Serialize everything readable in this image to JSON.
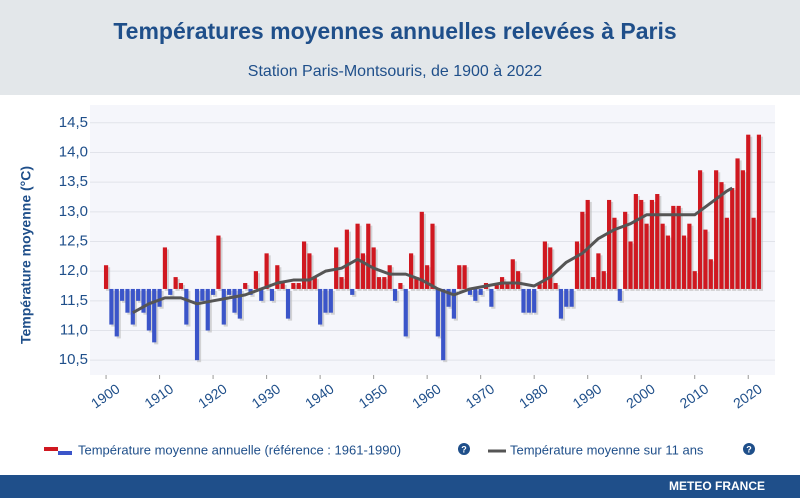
{
  "chart_data": {
    "type": "bar",
    "title": "Températures moyennes annuelles relevées à Paris",
    "subtitle": "Station Paris-Montsouris, de 1900 à 2022",
    "y_label": "Température moyenne (°C)",
    "footer": "METEO FRANCE",
    "baseline": 11.7,
    "up_color": "#d01820",
    "down_color": "#3b55c9",
    "grid": true,
    "xlim": [
      1897,
      2025
    ],
    "xticks": [
      1900,
      1910,
      1920,
      1930,
      1940,
      1950,
      1960,
      1970,
      1980,
      1990,
      2000,
      2010,
      2020
    ],
    "ylim": [
      10.25,
      14.8
    ],
    "yticks": [
      {
        "value": 10.5,
        "label": "10,5"
      },
      {
        "value": 11,
        "label": "11,0"
      },
      {
        "value": 11.5,
        "label": "11,5"
      },
      {
        "value": 12,
        "label": "12,0"
      },
      {
        "value": 12.5,
        "label": "12,5"
      },
      {
        "value": 13,
        "label": "13,0"
      },
      {
        "value": 13.5,
        "label": "13,5"
      },
      {
        "value": 14,
        "label": "14,0"
      },
      {
        "value": 14.5,
        "label": "14,5"
      }
    ],
    "series": [
      {
        "name": "Température moyenne annuelle (référence : 1961-1990)",
        "type": "bar",
        "x": [
          1900,
          1901,
          1902,
          1903,
          1904,
          1905,
          1906,
          1907,
          1908,
          1909,
          1910,
          1911,
          1912,
          1913,
          1914,
          1915,
          1916,
          1917,
          1918,
          1919,
          1920,
          1921,
          1922,
          1923,
          1924,
          1925,
          1926,
          1927,
          1928,
          1929,
          1930,
          1931,
          1932,
          1933,
          1934,
          1935,
          1936,
          1937,
          1938,
          1939,
          1940,
          1941,
          1942,
          1943,
          1944,
          1945,
          1946,
          1947,
          1948,
          1949,
          1950,
          1951,
          1952,
          1953,
          1954,
          1955,
          1956,
          1957,
          1958,
          1959,
          1960,
          1961,
          1962,
          1963,
          1964,
          1965,
          1966,
          1967,
          1968,
          1969,
          1970,
          1971,
          1972,
          1973,
          1974,
          1975,
          1976,
          1977,
          1978,
          1979,
          1980,
          1981,
          1982,
          1983,
          1984,
          1985,
          1986,
          1987,
          1988,
          1989,
          1990,
          1991,
          1992,
          1993,
          1994,
          1995,
          1996,
          1997,
          1998,
          1999,
          2000,
          2001,
          2002,
          2003,
          2004,
          2005,
          2006,
          2007,
          2008,
          2009,
          2010,
          2011,
          2012,
          2013,
          2014,
          2015,
          2016,
          2017,
          2018,
          2019,
          2020,
          2021,
          2022
        ],
        "values": [
          12.1,
          11.1,
          10.9,
          11.5,
          11.3,
          11.1,
          11.5,
          11.3,
          11.0,
          10.8,
          11.4,
          12.4,
          11.6,
          11.9,
          11.8,
          11.1,
          11.7,
          10.5,
          11.5,
          11.0,
          11.6,
          12.6,
          11.1,
          11.6,
          11.3,
          11.2,
          11.8,
          11.6,
          12.0,
          11.5,
          12.3,
          11.5,
          12.1,
          11.8,
          11.2,
          11.8,
          11.8,
          12.5,
          12.3,
          11.9,
          11.1,
          11.3,
          11.3,
          12.4,
          11.9,
          12.7,
          11.6,
          12.8,
          12.3,
          12.8,
          12.4,
          11.9,
          11.9,
          12.1,
          11.5,
          11.8,
          10.9,
          12.3,
          11.9,
          13.0,
          12.1,
          12.8,
          10.9,
          10.5,
          11.4,
          11.2,
          12.1,
          12.1,
          11.6,
          11.5,
          11.6,
          11.8,
          11.4,
          11.8,
          11.9,
          11.8,
          12.2,
          12.0,
          11.3,
          11.3,
          11.3,
          11.8,
          12.5,
          12.4,
          11.8,
          11.2,
          11.4,
          11.4,
          12.5,
          13.0,
          13.2,
          11.9,
          12.3,
          12.0,
          13.2,
          12.9,
          11.5,
          13.0,
          12.5,
          13.3,
          13.2,
          12.8,
          13.2,
          13.3,
          12.8,
          12.6,
          13.1,
          13.1,
          12.6,
          12.8,
          12.0,
          13.7,
          12.7,
          12.2,
          13.7,
          13.5,
          12.9,
          13.4,
          13.9,
          13.7,
          14.3,
          12.9,
          14.3
        ]
      },
      {
        "name": "Température moyenne sur 11 ans",
        "type": "line",
        "color": "#555555",
        "x": [
          1905,
          1908,
          1911,
          1914,
          1917,
          1920,
          1923,
          1926,
          1929,
          1932,
          1935,
          1938,
          1941,
          1944,
          1947,
          1950,
          1953,
          1956,
          1959,
          1962,
          1965,
          1968,
          1971,
          1974,
          1977,
          1980,
          1983,
          1986,
          1989,
          1992,
          1995,
          1998,
          2001,
          2004,
          2007,
          2010,
          2013,
          2016,
          2017
        ],
        "values": [
          11.3,
          11.45,
          11.55,
          11.55,
          11.45,
          11.5,
          11.55,
          11.6,
          11.7,
          11.8,
          11.85,
          11.85,
          12.0,
          12.05,
          12.2,
          12.05,
          11.95,
          11.95,
          11.85,
          11.7,
          11.6,
          11.7,
          11.75,
          11.8,
          11.8,
          11.75,
          11.9,
          12.15,
          12.3,
          12.55,
          12.7,
          12.8,
          12.95,
          12.95,
          12.95,
          12.95,
          13.15,
          13.35,
          13.4
        ]
      }
    ]
  }
}
